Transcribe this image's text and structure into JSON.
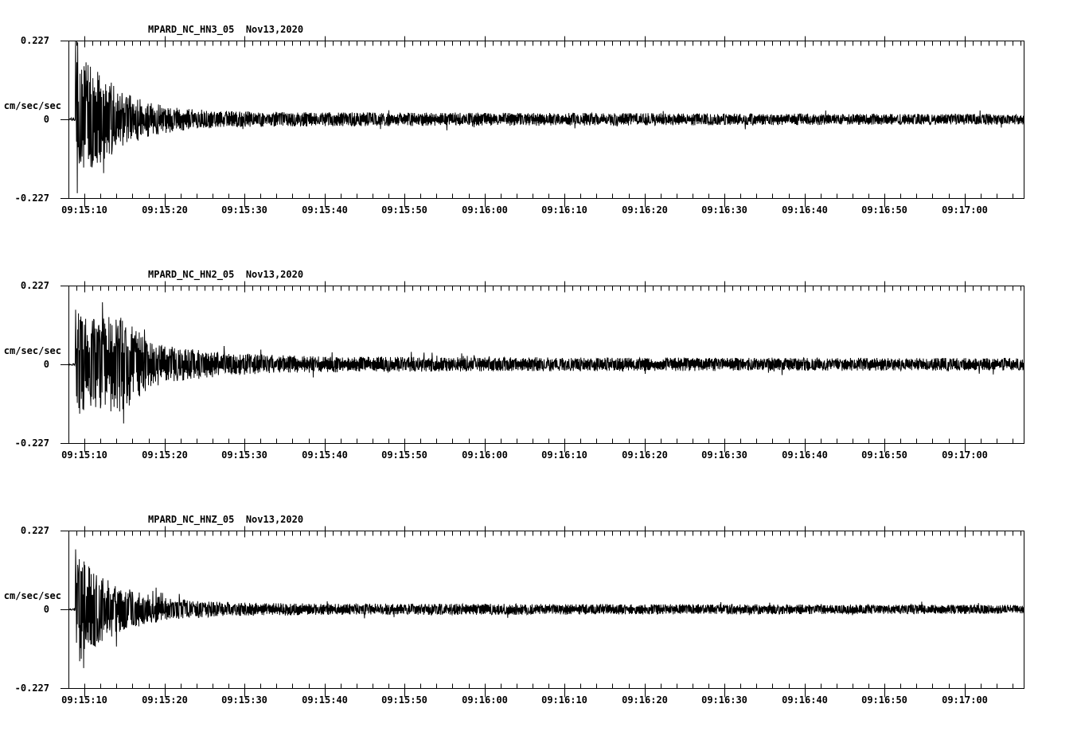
{
  "page": {
    "background_color": "#ffffff",
    "trace_color": "#000000",
    "axis_color": "#000000"
  },
  "chart_data": [
    {
      "type": "line",
      "title": "MPARD_NC_HN3_05  Nov13,2020",
      "station": "MPARD_NC_HN3_05",
      "date": "Nov13,2020",
      "ylabel": "cm/sec/sec",
      "ylim": [
        -0.227,
        0.227
      ],
      "ytick_labels": [
        "0.227",
        "0",
        "-0.227"
      ],
      "xtick_labels": [
        "09:15:10",
        "09:15:20",
        "09:15:30",
        "09:15:40",
        "09:15:50",
        "09:16:00",
        "09:16:10",
        "09:16:20",
        "09:16:30",
        "09:16:40",
        "09:16:50",
        "09:17:00"
      ],
      "x_start": "09:15:08",
      "x_end": "09:17:07",
      "grid": false,
      "legend": "none",
      "signal": {
        "onset_s": 8.9,
        "peak_amp": 0.227,
        "decay_tau_s": 4.5,
        "bump_amp": 0.0,
        "bump_t_s": 0,
        "noise_start": 0.022,
        "noise_end": 0.015,
        "pre_noise": 0.004,
        "seed": 101
      }
    },
    {
      "type": "line",
      "title": "MPARD_NC_HN2_05  Nov13,2020",
      "station": "MPARD_NC_HN2_05",
      "date": "Nov13,2020",
      "ylabel": "cm/sec/sec",
      "ylim": [
        -0.227,
        0.227
      ],
      "ytick_labels": [
        "0.227",
        "0",
        "-0.227"
      ],
      "xtick_labels": [
        "09:15:10",
        "09:15:20",
        "09:15:30",
        "09:15:40",
        "09:15:50",
        "09:16:00",
        "09:16:10",
        "09:16:20",
        "09:16:30",
        "09:16:40",
        "09:16:50",
        "09:17:00"
      ],
      "x_start": "09:15:08",
      "x_end": "09:17:07",
      "grid": false,
      "legend": "none",
      "signal": {
        "onset_s": 8.9,
        "peak_amp": 0.135,
        "decay_tau_s": 8.0,
        "bump_amp": 0.055,
        "bump_t_s": 14.6,
        "noise_start": 0.022,
        "noise_end": 0.018,
        "pre_noise": 0.004,
        "seed": 202
      }
    },
    {
      "type": "line",
      "title": "MPARD_NC_HNZ_05  Nov13,2020",
      "station": "MPARD_NC_HNZ_05",
      "date": "Nov13,2020",
      "ylabel": "cm/sec/sec",
      "ylim": [
        -0.227,
        0.227
      ],
      "ytick_labels": [
        "0.227",
        "0",
        "-0.227"
      ],
      "xtick_labels": [
        "09:15:10",
        "09:15:20",
        "09:15:30",
        "09:15:40",
        "09:15:50",
        "09:16:00",
        "09:16:10",
        "09:16:20",
        "09:16:30",
        "09:16:40",
        "09:16:50",
        "09:17:00"
      ],
      "x_start": "09:15:08",
      "x_end": "09:17:07",
      "grid": false,
      "legend": "none",
      "signal": {
        "onset_s": 8.9,
        "peak_amp": 0.155,
        "decay_tau_s": 5.0,
        "bump_amp": 0.0,
        "bump_t_s": 0,
        "noise_start": 0.018,
        "noise_end": 0.013,
        "pre_noise": 0.004,
        "seed": 303
      }
    }
  ]
}
